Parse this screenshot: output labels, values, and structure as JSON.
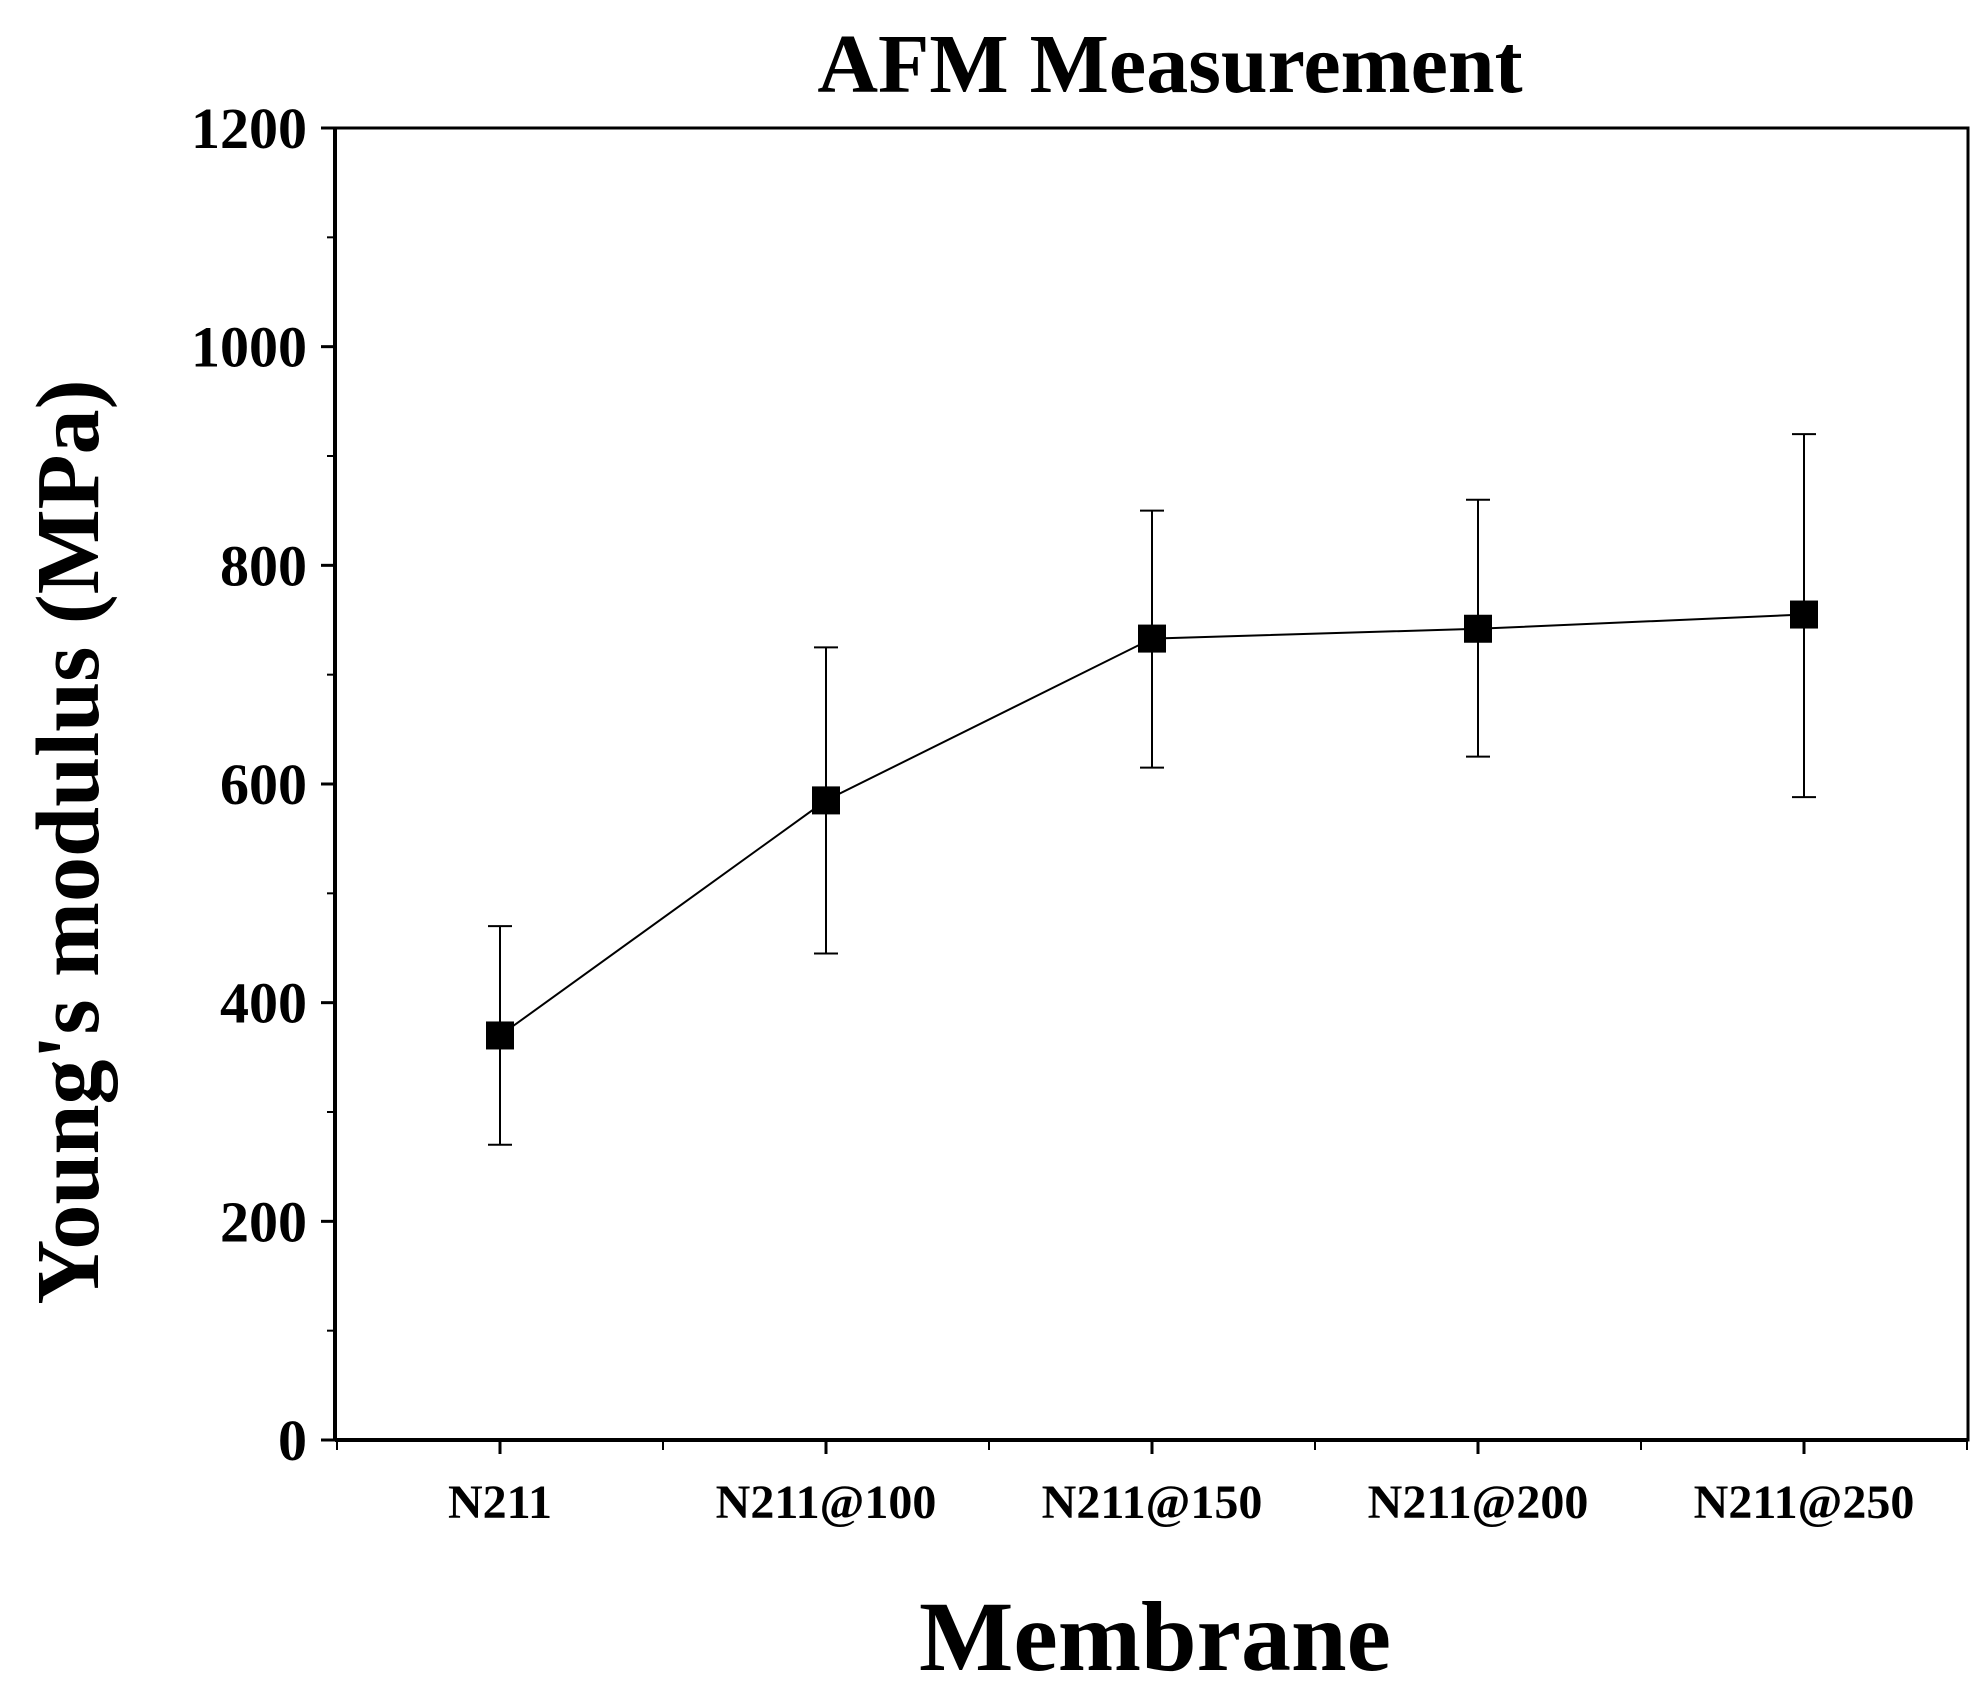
{
  "chart_data": {
    "type": "line",
    "title": "AFM Measurement",
    "xlabel": "Membrane",
    "ylabel": "Young's modulus (MPa)",
    "categories": [
      "N211",
      "N211@100",
      "N211@150",
      "N211@200",
      "N211@250"
    ],
    "series": [
      {
        "values": [
          370,
          585,
          733,
          742,
          755
        ],
        "error_low": [
          270,
          445,
          615,
          625,
          588
        ],
        "error_high": [
          470,
          725,
          850,
          860,
          920
        ]
      }
    ],
    "ylim": [
      0,
      1200
    ],
    "yticks": [
      0,
      200,
      400,
      600,
      800,
      1000,
      1200
    ],
    "grid": false,
    "legend": "none",
    "marker": "square",
    "colors": {
      "line": "#000000",
      "marker": "#000000",
      "errorbar": "#000000"
    }
  }
}
